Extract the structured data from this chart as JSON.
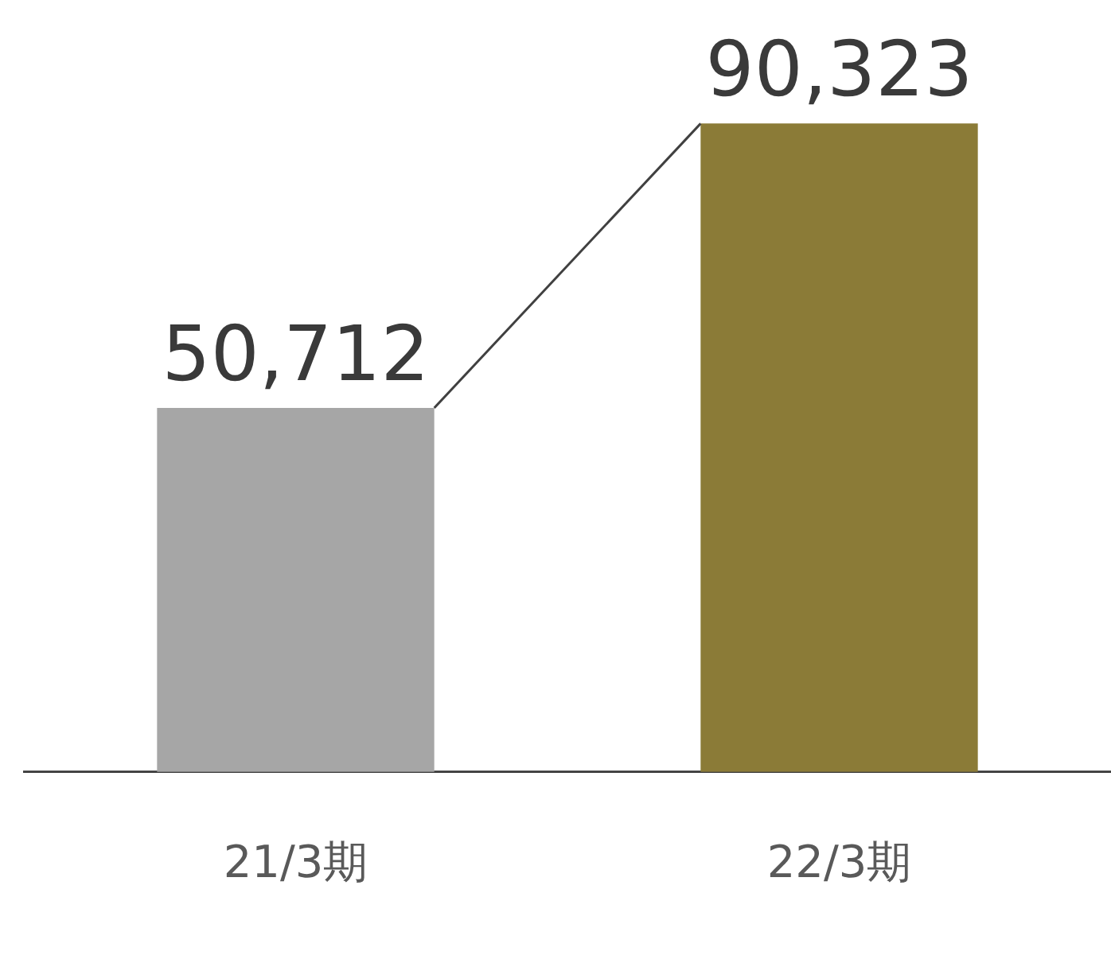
{
  "chart_data": {
    "type": "bar",
    "categories": [
      "21/3期",
      "22/3期"
    ],
    "values": [
      50712,
      90323
    ],
    "colors": [
      "#a6a6a6",
      "#8b7b37"
    ],
    "value_labels": [
      "50,712",
      "90,323"
    ],
    "grid": false,
    "legend": false
  }
}
